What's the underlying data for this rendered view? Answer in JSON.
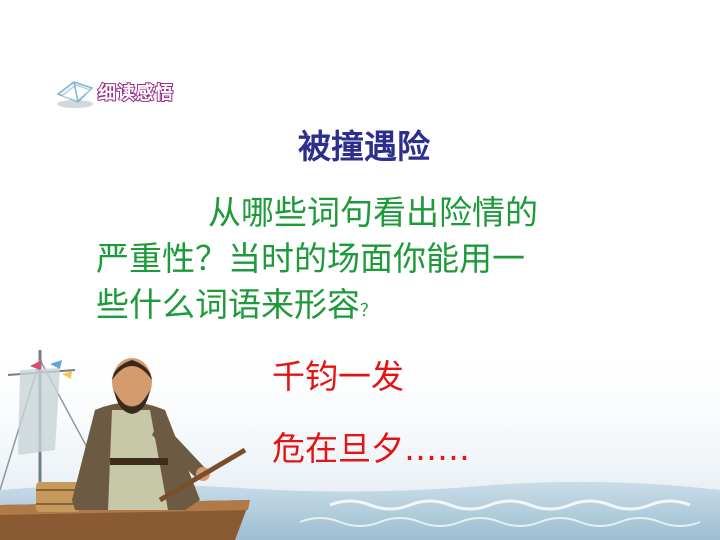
{
  "section_tag": {
    "label": "细读感悟",
    "icon": "book-icon"
  },
  "title": "被撞遇险",
  "question": {
    "line1": "从哪些词句看出险情的",
    "line2": "严重性？当时的场面你能用一",
    "line3": "些什么词语来形容",
    "line3_end": "？"
  },
  "answers": [
    "千钧一发",
    "危在旦夕……"
  ],
  "colors": {
    "title": "#2d2f8f",
    "question": "#1d9a3a",
    "answer": "#e41414",
    "tag_stroke": "#9b2c8c"
  }
}
